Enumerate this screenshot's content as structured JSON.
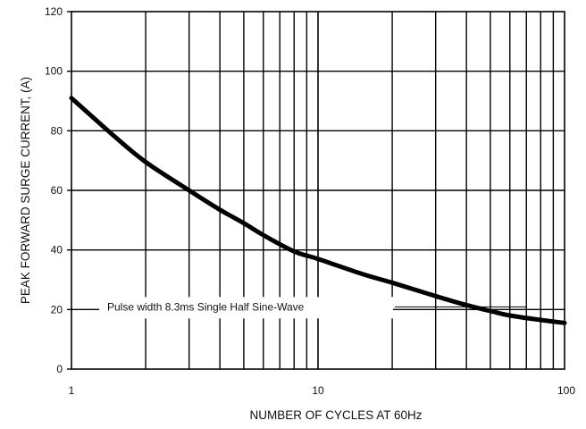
{
  "chart_data": {
    "type": "line",
    "xlabel": "NUMBER OF CYCLES AT 60Hz",
    "ylabel": "PEAK FORWARD SURGE CURRENT, (A)",
    "xscale": "log",
    "xlim": [
      1,
      100
    ],
    "ylim": [
      0,
      120
    ],
    "x_tick_labels": [
      "1",
      "10",
      "100"
    ],
    "y_tick_labels": [
      "0",
      "20",
      "40",
      "60",
      "80",
      "100",
      "120"
    ],
    "grid": true,
    "annotation": "Pulse width 8.3ms Single Half Sine-Wave",
    "series": [
      {
        "x": [
          1,
          1.5,
          2,
          3,
          4,
          5,
          6,
          8,
          10,
          15,
          20,
          30,
          40,
          50,
          60,
          80,
          100
        ],
        "y": [
          91,
          78,
          69.5,
          60,
          53.5,
          49,
          45,
          39.5,
          37,
          32,
          29,
          24.5,
          21.5,
          19.5,
          18,
          16.5,
          15.5
        ]
      }
    ],
    "line_color": "#000000"
  }
}
